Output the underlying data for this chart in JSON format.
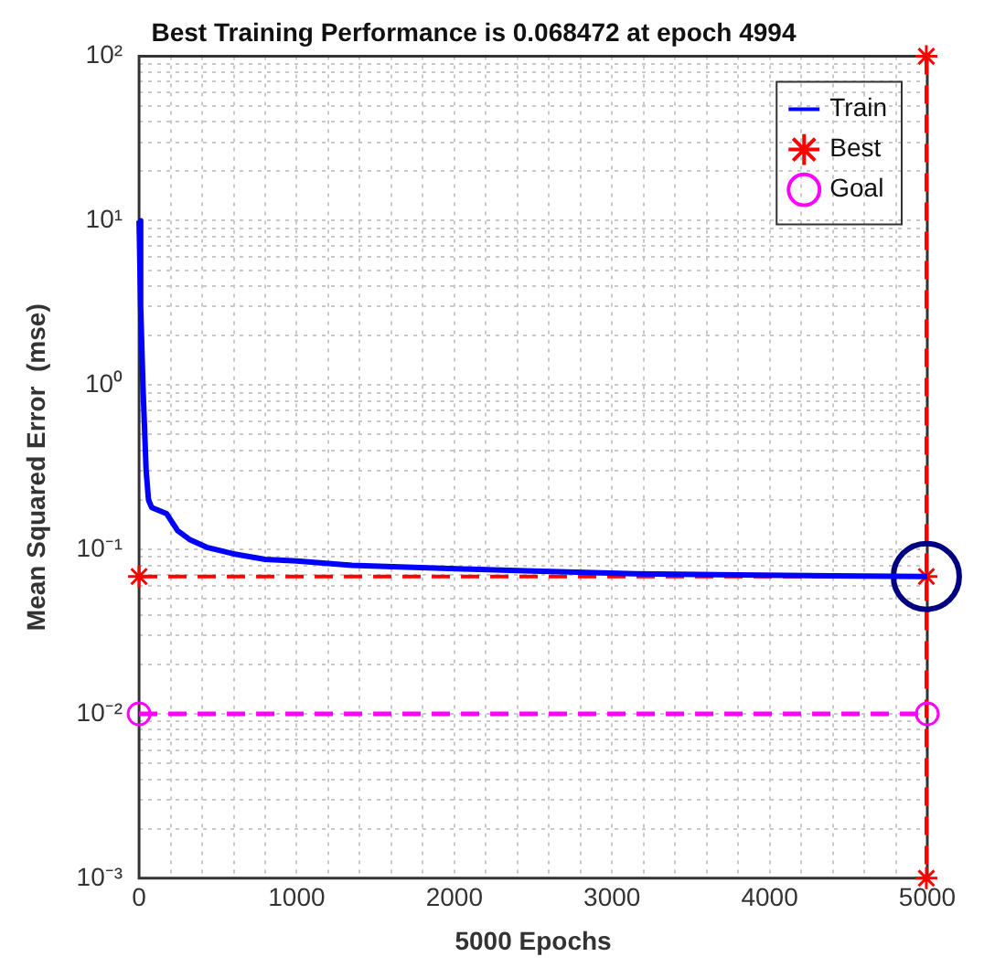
{
  "chart_data": {
    "type": "line",
    "title": "Best Training Performance is 0.068472 at epoch 4994",
    "xlabel": "5000 Epochs",
    "ylabel": "Mean Squared Error  (mse)",
    "log": "y",
    "grid": true,
    "legend": "top right",
    "xlim": [
      0,
      5000
    ],
    "ylim": [
      0.001,
      100
    ],
    "xticks": [
      0,
      {
        "value": 200,
        "label": null
      },
      {
        "value": 400,
        "label": null
      },
      {
        "value": 600,
        "label": null
      },
      {
        "value": 800,
        "label": null
      },
      1000,
      {
        "value": 1200,
        "label": null
      },
      {
        "value": 1400,
        "label": null
      },
      {
        "value": 1600,
        "label": null
      },
      {
        "value": 1800,
        "label": null
      },
      2000,
      {
        "value": 2200,
        "label": null
      },
      {
        "value": 2400,
        "label": null
      },
      {
        "value": 2600,
        "label": null
      },
      {
        "value": 2800,
        "label": null
      },
      3000,
      {
        "value": 3200,
        "label": null
      },
      {
        "value": 3400,
        "label": null
      },
      {
        "value": 3600,
        "label": null
      },
      {
        "value": 3800,
        "label": null
      },
      4000,
      {
        "value": 4200,
        "label": null
      },
      {
        "value": 4400,
        "label": null
      },
      {
        "value": 4600,
        "label": null
      },
      {
        "value": 4800,
        "label": null
      },
      5000
    ],
    "yticks": [
      {
        "value": 0.001,
        "label": "10⁻³"
      },
      {
        "value": 0.002,
        "label": null
      },
      {
        "value": 0.003,
        "label": null
      },
      {
        "value": 0.004,
        "label": null
      },
      {
        "value": 0.005,
        "label": null
      },
      {
        "value": 0.006,
        "label": null
      },
      {
        "value": 0.007,
        "label": null
      },
      {
        "value": 0.008,
        "label": null
      },
      {
        "value": 0.009,
        "label": null
      },
      {
        "value": 0.01,
        "label": "10⁻²"
      },
      {
        "value": 0.02,
        "label": null
      },
      {
        "value": 0.03,
        "label": null
      },
      {
        "value": 0.04,
        "label": null
      },
      {
        "value": 0.05,
        "label": null
      },
      {
        "value": 0.06,
        "label": null
      },
      {
        "value": 0.07,
        "label": null
      },
      {
        "value": 0.08,
        "label": null
      },
      {
        "value": 0.09,
        "label": null
      },
      {
        "value": 0.1,
        "label": "10⁻¹"
      },
      {
        "value": 0.2,
        "label": null
      },
      {
        "value": 0.3,
        "label": null
      },
      {
        "value": 0.4,
        "label": null
      },
      {
        "value": 0.5,
        "label": null
      },
      {
        "value": 0.6,
        "label": null
      },
      {
        "value": 0.7,
        "label": null
      },
      {
        "value": 0.8,
        "label": null
      },
      {
        "value": 0.9,
        "label": null
      },
      {
        "value": 1,
        "label": "10⁰"
      },
      {
        "value": 2,
        "label": null
      },
      {
        "value": 3,
        "label": null
      },
      {
        "value": 4,
        "label": null
      },
      {
        "value": 5,
        "label": null
      },
      {
        "value": 6,
        "label": null
      },
      {
        "value": 7,
        "label": null
      },
      {
        "value": 8,
        "label": null
      },
      {
        "value": 9,
        "label": null
      },
      {
        "value": 10,
        "label": "10¹"
      },
      {
        "value": 20,
        "label": null
      },
      {
        "value": 30,
        "label": null
      },
      {
        "value": 40,
        "label": null
      },
      {
        "value": 50,
        "label": null
      },
      {
        "value": 60,
        "label": null
      },
      {
        "value": 70,
        "label": null
      },
      {
        "value": 80,
        "label": null
      },
      {
        "value": 90,
        "label": null
      },
      {
        "value": 100,
        "label": "10²"
      }
    ],
    "ref_lines": [
      {
        "axis": "y",
        "value": 0.068472,
        "color": "#ff0000",
        "line_style": "dashed"
      },
      {
        "axis": "x",
        "value": 4994,
        "color": "#ff0000",
        "line_style": "dashed"
      }
    ],
    "series": [
      {
        "name": "Train",
        "type": "line",
        "color": "#0000ff",
        "marker": "none",
        "line_style": "solid",
        "x": [
          0,
          10,
          25,
          45,
          60,
          80,
          175,
          245,
          320,
          430,
          600,
          800,
          1000,
          1350,
          1700,
          2060,
          2500,
          3150,
          3800,
          4400,
          4994,
          5000
        ],
        "values": [
          10,
          3,
          0.97,
          0.3,
          0.2,
          0.18,
          0.165,
          0.13,
          0.115,
          0.103,
          0.094,
          0.087,
          0.085,
          0.08,
          0.078,
          0.076,
          0.074,
          0.071,
          0.07,
          0.069,
          0.068472,
          0.0685
        ]
      },
      {
        "name": "Best",
        "type": "scatter",
        "color": "#ff0000",
        "marker": "cross",
        "x": [
          0,
          4994,
          4994,
          4994
        ],
        "values": [
          0.068472,
          0.068472,
          100,
          0.001
        ]
      },
      {
        "name": "Goal",
        "type": "line",
        "color": "#ff00ff",
        "marker": "circle",
        "line_style": "dashed",
        "x": [
          0,
          5000
        ],
        "values": [
          0.01,
          0.01
        ]
      },
      {
        "type": "scatter",
        "color": "#000080",
        "marker": "circle",
        "x": [
          4994
        ],
        "values": [
          0.068472
        ]
      }
    ]
  }
}
